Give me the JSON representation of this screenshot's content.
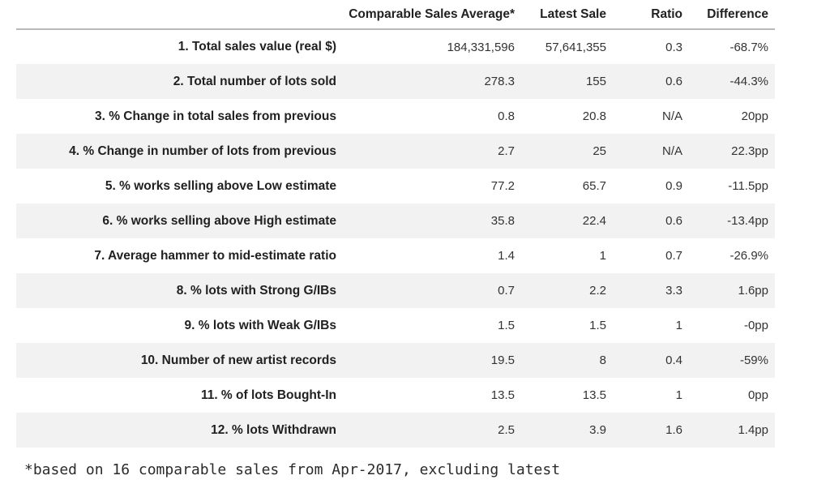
{
  "chart_data": {
    "type": "table",
    "title": "",
    "columns": [
      "",
      "Comparable Sales Average*",
      "Latest Sale",
      "Ratio",
      "Difference"
    ],
    "rows": [
      [
        "1. Total sales value (real $)",
        "184,331,596",
        "57,641,355",
        "0.3",
        "-68.7%"
      ],
      [
        "2. Total number of lots sold",
        "278.3",
        "155",
        "0.6",
        "-44.3%"
      ],
      [
        "3. % Change in total sales from previous",
        "0.8",
        "20.8",
        "N/A",
        "20pp"
      ],
      [
        "4. % Change in number of lots from previous",
        "2.7",
        "25",
        "N/A",
        "22.3pp"
      ],
      [
        "5. % works selling above Low estimate",
        "77.2",
        "65.7",
        "0.9",
        "-11.5pp"
      ],
      [
        "6. % works selling above High estimate",
        "35.8",
        "22.4",
        "0.6",
        "-13.4pp"
      ],
      [
        "7. Average hammer to mid-estimate ratio",
        "1.4",
        "1",
        "0.7",
        "-26.9%"
      ],
      [
        "8. % lots with Strong G/IBs",
        "0.7",
        "2.2",
        "3.3",
        "1.6pp"
      ],
      [
        "9. % lots with Weak G/IBs",
        "1.5",
        "1.5",
        "1",
        "-0pp"
      ],
      [
        "10. Number of new artist records",
        "19.5",
        "8",
        "0.4",
        "-59%"
      ],
      [
        "11. % of lots Bought-In",
        "13.5",
        "13.5",
        "1",
        "0pp"
      ],
      [
        "12. % lots Withdrawn",
        "2.5",
        "3.9",
        "1.6",
        "1.4pp"
      ]
    ],
    "footnote": "*based on 16 comparable sales from Apr-2017, excluding latest",
    "layout": {
      "zebra_striping": true,
      "value_alignment": "right",
      "label_alignment": "right",
      "grid": "header-underline-only"
    }
  },
  "colors": {
    "stripe_row_bg": "#f2f2f2",
    "header_border": "#b8b8b8",
    "label_text": "#212121",
    "value_text": "#333333",
    "page_bg": "#ffffff"
  }
}
